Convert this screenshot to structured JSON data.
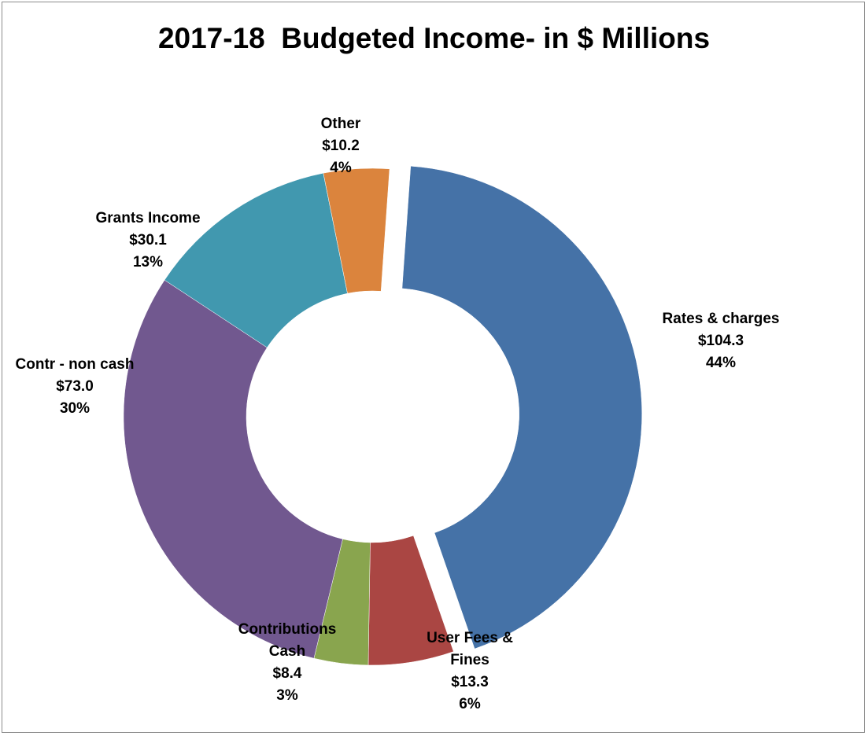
{
  "chart_data": {
    "type": "pie",
    "style": "doughnut",
    "title": "2017-18  Budgeted Income- in $ Millions",
    "legend": "none",
    "slices": [
      {
        "name": "Rates & charges",
        "value": 104.3,
        "value_label": "$104.3",
        "percent_label": "44%",
        "color": "#4572a7",
        "exploded": true
      },
      {
        "name": "User Fees & Fines",
        "name_lines": [
          "User Fees &",
          "Fines"
        ],
        "value": 13.3,
        "value_label": "$13.3",
        "percent_label": "6%",
        "color": "#aa4643",
        "exploded": false
      },
      {
        "name": "Contributions Cash",
        "name_lines": [
          "Contributions",
          "Cash"
        ],
        "value": 8.4,
        "value_label": "$8.4",
        "percent_label": "3%",
        "color": "#89a54e",
        "exploded": false
      },
      {
        "name": "Contr - non cash",
        "value": 73.0,
        "value_label": "$73.0",
        "percent_label": "30%",
        "color": "#71588f",
        "exploded": false
      },
      {
        "name": "Grants Income",
        "value": 30.1,
        "value_label": "$30.1",
        "percent_label": "13%",
        "color": "#4198af",
        "exploded": false
      },
      {
        "name": "Other",
        "value": 10.2,
        "value_label": "$10.2",
        "percent_label": "4%",
        "color": "#db843d",
        "exploded": false
      }
    ]
  }
}
